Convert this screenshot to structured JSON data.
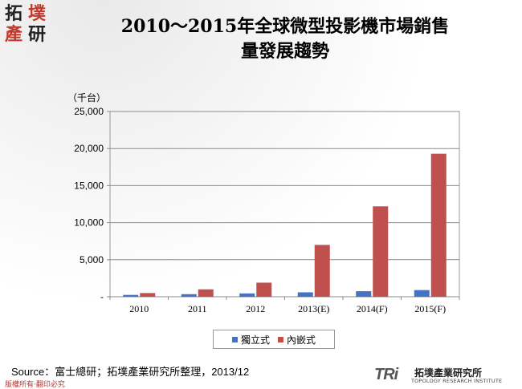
{
  "logo": {
    "chars": [
      "拓",
      "墣",
      "產",
      "研"
    ]
  },
  "title_lines": [
    "2010～2015年全球微型投影機市場銷售",
    "量發展趨勢"
  ],
  "unit_label": "（千台）",
  "legend": [
    {
      "name": "獨立式",
      "color": "#4472C4"
    },
    {
      "name": "內嵌式",
      "color": "#C0504D"
    }
  ],
  "source": "Source：富士總研；拓墣產業研究所整理，2013/12",
  "rights": "版權所有‧翻印必究",
  "footer_logo": {
    "mark": "TRi",
    "name": "拓墣產業研究所",
    "subtitle": "TOPOLOGY RESEARCH INSTITUTE"
  },
  "chart_data": {
    "type": "bar",
    "categories": [
      "2010",
      "2011",
      "2012",
      "2013(E)",
      "2014(F)",
      "2015(F)"
    ],
    "series": [
      {
        "name": "獨立式",
        "color": "#4472C4",
        "values": [
          250,
          350,
          450,
          600,
          750,
          900
        ]
      },
      {
        "name": "內嵌式",
        "color": "#C0504D",
        "values": [
          500,
          1000,
          1900,
          7000,
          12200,
          19300
        ]
      }
    ],
    "ylim": [
      0,
      25000
    ],
    "yticks": [
      0,
      5000,
      10000,
      15000,
      20000,
      25000
    ],
    "ytick_labels": [
      "-",
      "5,000",
      "10,000",
      "15,000",
      "20,000",
      "25,000"
    ],
    "ylabel": "（千台）",
    "grid": true,
    "legend_position": "bottom"
  }
}
